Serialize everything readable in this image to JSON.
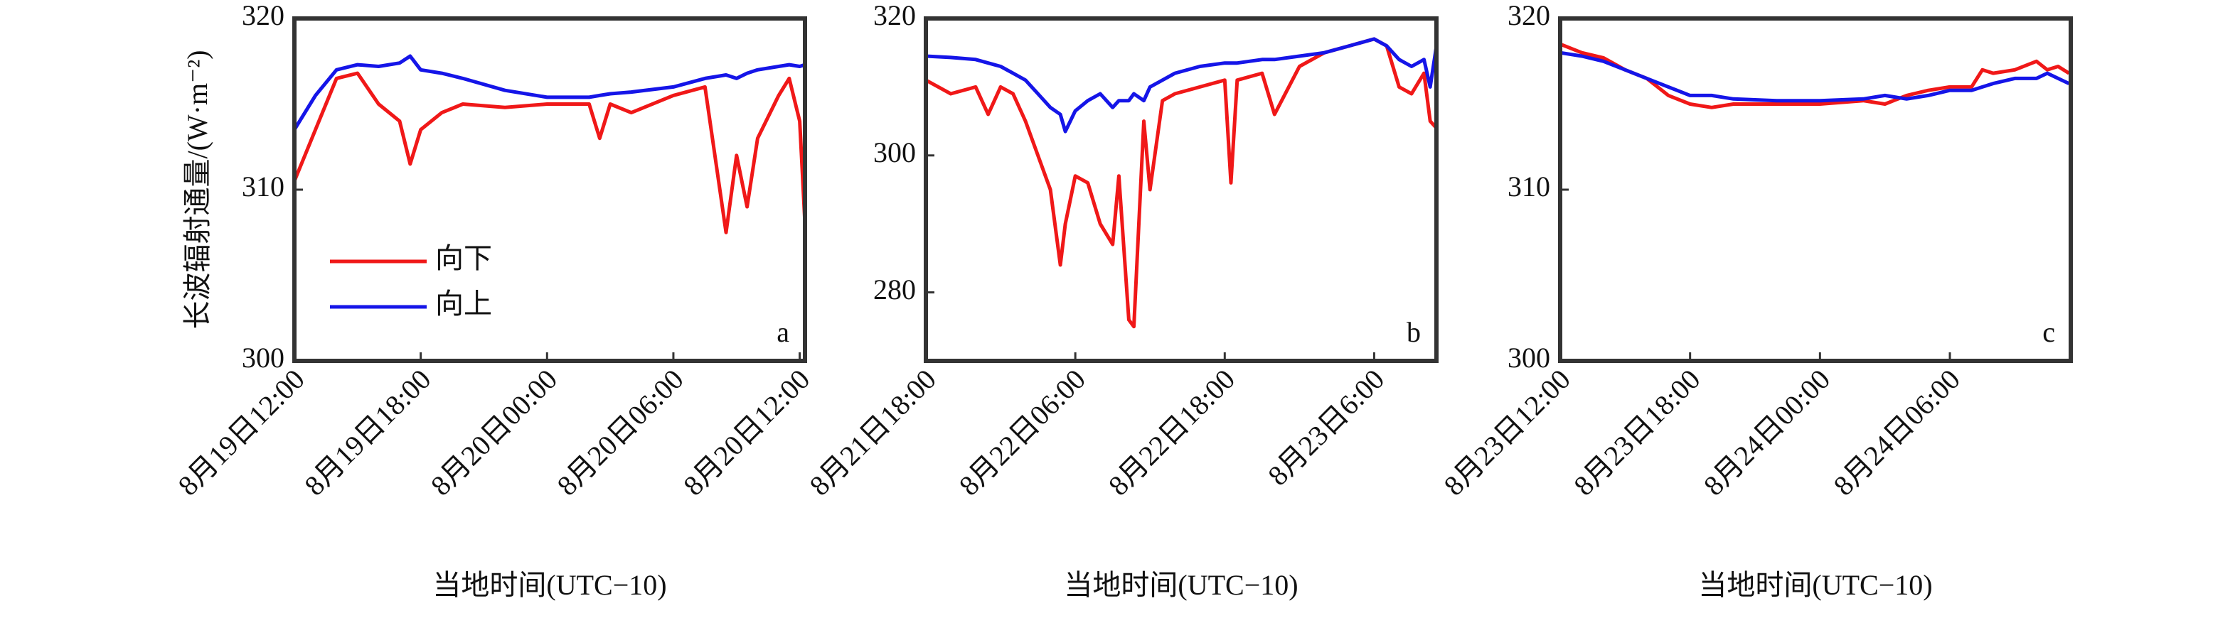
{
  "chart_data": [
    {
      "type": "line",
      "y_label": "长波辐射通量/(W·m⁻²)",
      "x_label": "当地时间(UTC−10)",
      "panel_label": "a",
      "legend": true,
      "xlim": [
        "8月19日12:00",
        "8月20日12:15"
      ],
      "ylim": [
        300,
        320
      ],
      "yticks": [
        300,
        310,
        320
      ],
      "xticks": [
        "8月19日12:00",
        "8月19日18:00",
        "8月20日00:00",
        "8月20日06:00",
        "8月20日12:00"
      ],
      "x": [
        "8月19日12:00",
        "8月19日13:00",
        "8月19日14:00",
        "8月19日15:00",
        "8月19日16:00",
        "8月19日17:00",
        "8月19日17:30",
        "8月19日18:00",
        "8月19日19:00",
        "8月19日20:00",
        "8月19日22:00",
        "8月20日00:00",
        "8月20日02:00",
        "8月20日02:30",
        "8月20日03:00",
        "8月20日04:00",
        "8月20日06:00",
        "8月20日07:30",
        "8月20日08:30",
        "8月20日09:00",
        "8月20日09:30",
        "8月20日10:00",
        "8月20日11:00",
        "8月20日11:30",
        "8月20日12:00",
        "8月20日12:15"
      ],
      "series": [
        {
          "name": "向下",
          "color": "#f01818",
          "values": [
            310.5,
            313.5,
            316.5,
            316.8,
            315,
            314,
            311.5,
            313.5,
            314.5,
            315,
            314.8,
            315,
            315,
            313,
            315,
            314.5,
            315.5,
            316,
            307.5,
            312,
            309,
            313,
            315.5,
            316.5,
            314,
            308
          ]
        },
        {
          "name": "向上",
          "color": "#1515e8",
          "values": [
            313.5,
            315.5,
            317,
            317.3,
            317.2,
            317.4,
            317.8,
            317,
            316.8,
            316.5,
            315.8,
            315.4,
            315.4,
            315.5,
            315.6,
            315.7,
            316,
            316.5,
            316.7,
            316.5,
            316.8,
            317,
            317.2,
            317.3,
            317.2,
            317.3
          ]
        }
      ]
    },
    {
      "type": "line",
      "x_label": "当地时间(UTC−10)",
      "panel_label": "b",
      "legend": false,
      "xlim": [
        "8月21日18:00",
        "8月23日11:00"
      ],
      "ylim": [
        270,
        320
      ],
      "yticks": [
        280,
        300,
        320
      ],
      "xticks": [
        "8月21日18:00",
        "8月22日06:00",
        "8月22日18:00",
        "8月23日6:00"
      ],
      "x": [
        "8月21日18:00",
        "8月21日20:00",
        "8月21日22:00",
        "8月21日23:00",
        "8月22日00:00",
        "8月22日01:00",
        "8月22日02:00",
        "8月22日03:00",
        "8月22日04:00",
        "8月22日04:48",
        "8月22日05:12",
        "8月22日06:00",
        "8月22日07:00",
        "8月22日08:00",
        "8月22日09:00",
        "8月22日09:30",
        "8月22日10:18",
        "8月22日10:42",
        "8月22日11:30",
        "8月22日12:00",
        "8月22日13:00",
        "8月22日14:00",
        "8月22日16:00",
        "8月22日18:00",
        "8月22日18:30",
        "8月22日19:00",
        "8月22日21:00",
        "8月22日22:00",
        "8月23日00:00",
        "8月23日02:00",
        "8月23日04:00",
        "8月23日06:00",
        "8月23日07:00",
        "8月23日08:00",
        "8月23日09:00",
        "8月23日10:00",
        "8月23日10:30",
        "8月23日11:00"
      ],
      "series": [
        {
          "color": "#f01818",
          "values": [
            311,
            309,
            310,
            306,
            310,
            309,
            305,
            300,
            295,
            284,
            290,
            297,
            296,
            290,
            287,
            297,
            276,
            275,
            305,
            295,
            308,
            309,
            310,
            311,
            296,
            311,
            312,
            306,
            313,
            315,
            316,
            317,
            316,
            310,
            309,
            312,
            305,
            304
          ]
        },
        {
          "color": "#1515e8",
          "values": [
            314.5,
            314.3,
            314,
            313.5,
            313,
            312,
            311,
            309,
            307,
            306,
            303.5,
            306.5,
            308,
            309,
            307,
            308,
            308,
            309,
            308,
            310,
            311,
            312,
            313,
            313.5,
            313.5,
            313.5,
            314,
            314,
            314.5,
            315,
            316,
            317,
            316,
            314,
            313,
            314,
            310,
            316
          ]
        }
      ]
    },
    {
      "type": "line",
      "x_label": "当地时间(UTC−10)",
      "panel_label": "c",
      "legend": false,
      "xlim": [
        "8月23日12:00",
        "8月24日11:35"
      ],
      "ylim": [
        300,
        320
      ],
      "yticks": [
        300,
        310,
        320
      ],
      "xticks": [
        "8月23日12:00",
        "8月23日18:00",
        "8月24日00:00",
        "8月24日06:00"
      ],
      "x": [
        "8月23日12:00",
        "8月23日13:00",
        "8月23日14:00",
        "8月23日15:00",
        "8月23日16:00",
        "8月23日17:00",
        "8月23日18:00",
        "8月23日19:00",
        "8月23日20:00",
        "8月23日22:00",
        "8月24日00:00",
        "8月24日02:00",
        "8月24日03:00",
        "8月24日04:00",
        "8月24日05:00",
        "8月24日06:00",
        "8月24日07:00",
        "8月24日07:30",
        "8月24日08:00",
        "8月24日09:00",
        "8月24日10:00",
        "8月24日10:30",
        "8月24日11:00",
        "8月24日11:30"
      ],
      "series": [
        {
          "color": "#f01818",
          "values": [
            318.5,
            318,
            317.7,
            317,
            316.5,
            315.5,
            315,
            314.8,
            315,
            315,
            315,
            315.2,
            315,
            315.5,
            315.8,
            316,
            316,
            317,
            316.8,
            317,
            317.5,
            317,
            317.2,
            316.8
          ]
        },
        {
          "color": "#1515e8",
          "values": [
            318,
            317.8,
            317.5,
            317,
            316.5,
            316,
            315.5,
            315.5,
            315.3,
            315.2,
            315.2,
            315.3,
            315.5,
            315.3,
            315.5,
            315.8,
            315.8,
            316,
            316.2,
            316.5,
            316.5,
            316.8,
            316.5,
            316.2
          ]
        }
      ]
    }
  ]
}
